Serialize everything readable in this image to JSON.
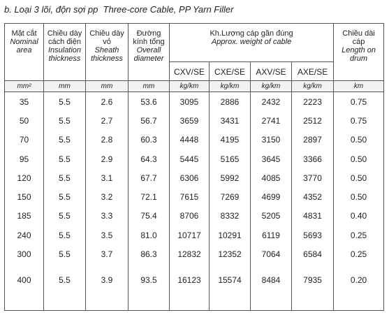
{
  "title": "b. Loại 3 lõi, độn sợi pp  Three-core Cable, PP Yarn Filler",
  "columns": [
    {
      "vi": "Mặt cắt",
      "en": "Nominal area"
    },
    {
      "vi": "Chiều dày cách điện",
      "en": "Insulation thickness"
    },
    {
      "vi": "Chiều dày vỏ",
      "en": "Sheath thickness"
    },
    {
      "vi": "Đường kính tổng",
      "en": "Overall diameter"
    }
  ],
  "group": {
    "vi": "Kh.Lượng cáp gần đúng",
    "en": "Approx. weight of cable",
    "subs": [
      "CXV/SE",
      "CXE/SE",
      "AXV/SE",
      "AXE/SE"
    ]
  },
  "last": {
    "vi": "Chiều dài cáp",
    "en": "Length on drum"
  },
  "units": [
    "mm²",
    "mm",
    "mm",
    "mm",
    "kg/km",
    "kg/km",
    "kg/km",
    "kg/km",
    "km"
  ],
  "rows": [
    [
      "35",
      "5.5",
      "2.6",
      "53.6",
      "3095",
      "2886",
      "2432",
      "2223",
      "0.75"
    ],
    [
      "50",
      "5.5",
      "2.7",
      "56.7",
      "3659",
      "3431",
      "2741",
      "2512",
      "0.75"
    ],
    [
      "70",
      "5.5",
      "2.8",
      "60.3",
      "4448",
      "4195",
      "3150",
      "2897",
      "0.50"
    ],
    [
      "95",
      "5.5",
      "2.9",
      "64.3",
      "5445",
      "5165",
      "3645",
      "3366",
      "0.50"
    ],
    [
      "120",
      "5.5",
      "3.1",
      "67.7",
      "6306",
      "5992",
      "4085",
      "3770",
      "0.50"
    ],
    [
      "150",
      "5.5",
      "3.2",
      "72.1",
      "7615",
      "7269",
      "4699",
      "4352",
      "0.50"
    ],
    [
      "185",
      "5.5",
      "3.3",
      "75.4",
      "8706",
      "8332",
      "5205",
      "4831",
      "0.40"
    ],
    [
      "240",
      "5.5",
      "3.5",
      "81.0",
      "10717",
      "10291",
      "6119",
      "5693",
      "0.25"
    ],
    [
      "300",
      "5.5",
      "3.7",
      "86.3",
      "12832",
      "12352",
      "7064",
      "6584",
      "0.25"
    ],
    [
      "400",
      "5.5",
      "3.9",
      "93.5",
      "16123",
      "15574",
      "8484",
      "7935",
      "0.20"
    ]
  ]
}
